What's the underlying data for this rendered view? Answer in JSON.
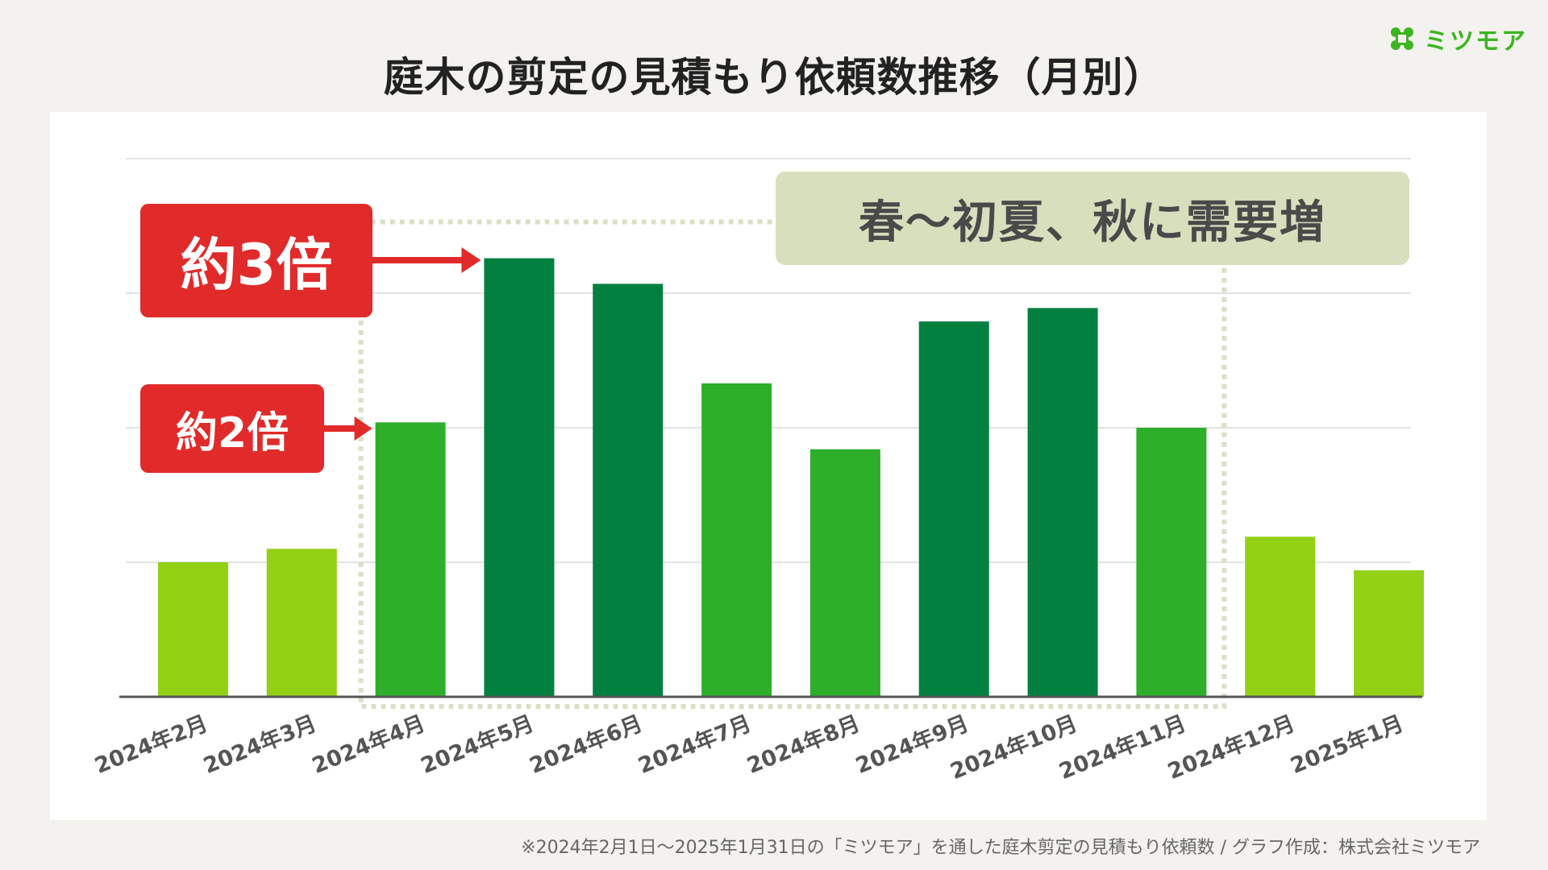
{
  "header": {
    "title": "庭木の剪定の見積もり依頼数推移（月別）",
    "logo_text": "ミツモア",
    "logo_icon": "mitsumore-logo-icon"
  },
  "callouts": {
    "triple": "約3倍",
    "double": "約2倍",
    "banner": "春〜初夏、秋に需要増"
  },
  "footnote": "※2024年2月1日〜2025年1月31日の「ミツモア」を通した庭木剪定の見積もり依頼数 / グラフ作成：株式会社ミツモア",
  "colors": {
    "low": "#92d114",
    "mid": "#2daf2a",
    "high": "#018040",
    "callout": "#e12a2a",
    "banner": "#d7dfbd",
    "highlight_border": "#dcdfc6",
    "grid": "#e2e2e2",
    "axis": "#555555"
  },
  "chart_data": {
    "type": "bar",
    "title": "庭木の剪定の見積もり依頼数推移（月別）",
    "xlabel": "",
    "ylabel": "",
    "ylim": [
      0,
      4
    ],
    "grid": true,
    "y_tick_labels_shown": false,
    "categories": [
      "2024年2月",
      "2024年3月",
      "2024年4月",
      "2024年5月",
      "2024年6月",
      "2024年7月",
      "2024年8月",
      "2024年9月",
      "2024年10月",
      "2024年11月",
      "2024年12月",
      "2025年1月"
    ],
    "values": [
      1.0,
      1.1,
      2.04,
      3.26,
      3.07,
      2.33,
      1.84,
      2.79,
      2.89,
      2.0,
      1.19,
      0.94
    ],
    "bar_color_levels": [
      "low",
      "low",
      "mid",
      "high",
      "high",
      "mid",
      "mid",
      "high",
      "high",
      "mid",
      "low",
      "low"
    ],
    "highlighted_range": [
      "2024年4月",
      "2024年11月"
    ],
    "annotations": [
      "約3倍",
      "約2倍",
      "春〜初夏、秋に需要増"
    ]
  }
}
